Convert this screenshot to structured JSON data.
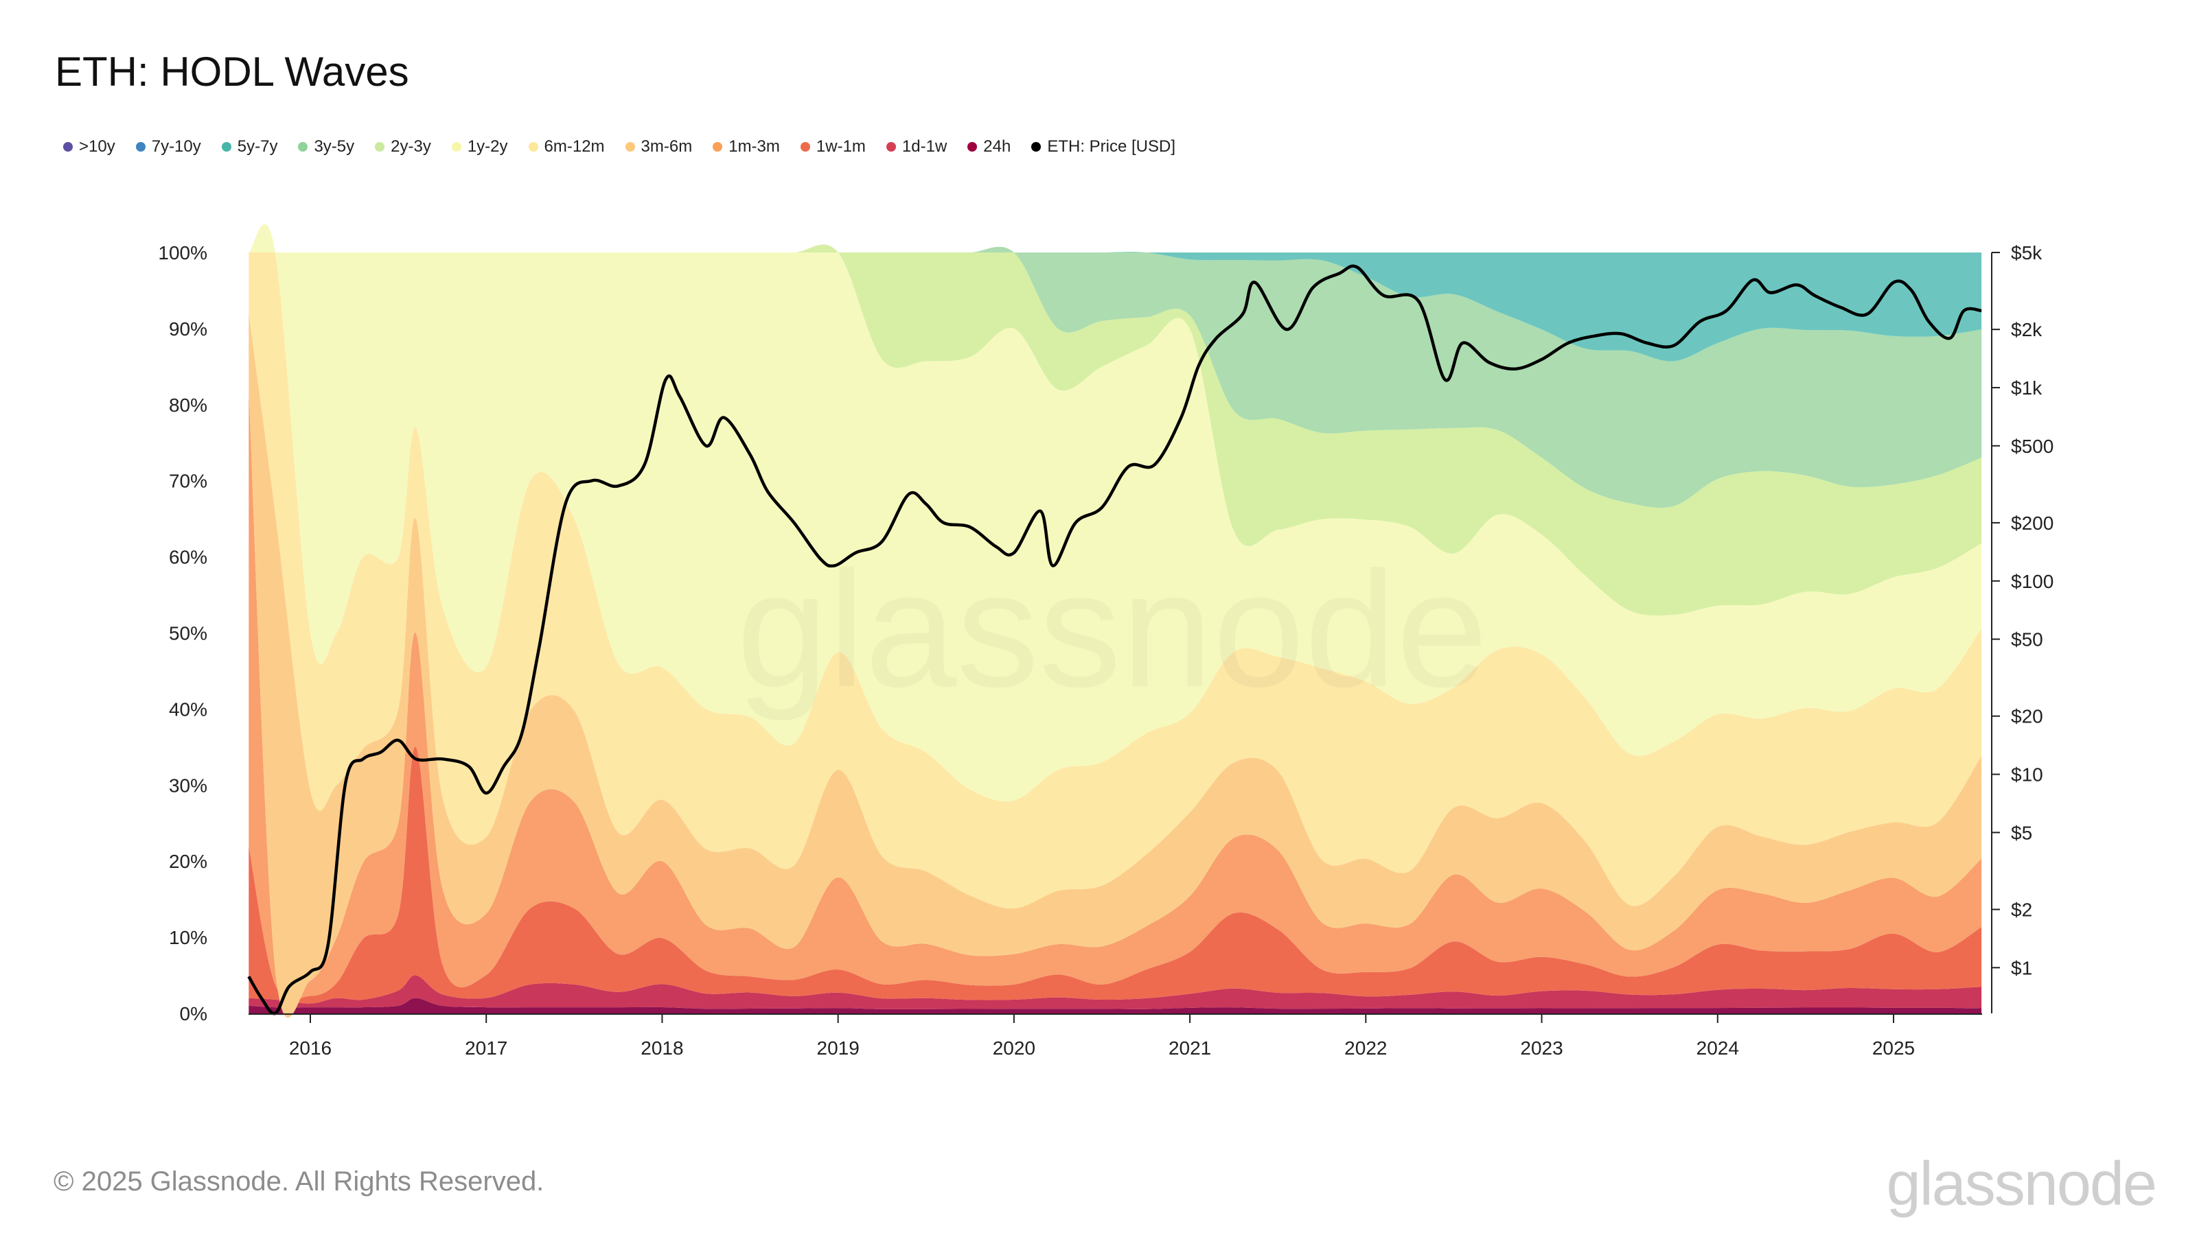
{
  "title": "ETH: HODL Waves",
  "footer": "© 2025 Glassnode. All Rights Reserved.",
  "brand": "glassnode",
  "watermark": "glassnode",
  "chart_data": {
    "type": "area",
    "stacked": true,
    "normalized": true,
    "xlabel": "",
    "ylabel": "",
    "x": [
      2015.65,
      2015.8,
      2016.0,
      2016.15,
      2016.3,
      2016.5,
      2016.6,
      2016.75,
      2017.0,
      2017.25,
      2017.5,
      2017.75,
      2018.0,
      2018.25,
      2018.5,
      2018.75,
      2019.0,
      2019.25,
      2019.5,
      2019.75,
      2020.0,
      2020.25,
      2020.5,
      2020.75,
      2021.0,
      2021.25,
      2021.5,
      2021.75,
      2022.0,
      2022.25,
      2022.5,
      2022.75,
      2023.0,
      2023.25,
      2023.5,
      2023.75,
      2024.0,
      2024.25,
      2024.5,
      2024.75,
      2025.0,
      2025.25,
      2025.5
    ],
    "x_ticks": [
      "2016",
      "2017",
      "2018",
      "2019",
      "2020",
      "2021",
      "2022",
      "2023",
      "2024",
      "2025"
    ],
    "y_ticks_left": [
      "0%",
      "10%",
      "20%",
      "30%",
      "40%",
      "50%",
      "60%",
      "70%",
      "80%",
      "90%",
      "100%"
    ],
    "y_ticks_right": [
      "$1",
      "$2",
      "$5",
      "$10",
      "$20",
      "$50",
      "$100",
      "$200",
      "$500",
      "$1k",
      "$2k",
      "$5k"
    ],
    "y_right_log_values": [
      1,
      2,
      5,
      10,
      20,
      50,
      100,
      200,
      500,
      1000,
      2000,
      5000
    ],
    "ylim_left": [
      0,
      100
    ],
    "ylim_right_log": [
      0.58,
      5000
    ],
    "series": [
      {
        "name": "24h",
        "color": "#8e1250",
        "values": [
          1.0,
          0.8,
          0.8,
          0.8,
          0.8,
          1.0,
          2.0,
          1.0,
          0.8,
          0.8,
          0.8,
          0.8,
          0.8,
          0.6,
          0.6,
          0.6,
          0.7,
          0.6,
          0.6,
          0.6,
          0.6,
          0.6,
          0.6,
          0.6,
          0.8,
          0.8,
          0.6,
          0.6,
          0.6,
          0.6,
          0.6,
          0.6,
          0.6,
          0.6,
          0.6,
          0.6,
          0.6,
          0.6,
          0.6,
          0.6,
          0.6,
          0.6,
          0.6
        ]
      },
      {
        "name": "1d-1w",
        "color": "#c9375a",
        "values": [
          1.0,
          1.0,
          0.5,
          1.2,
          1.0,
          2.0,
          3.0,
          1.5,
          1.2,
          3.0,
          3.0,
          2.0,
          3.0,
          2.0,
          2.0,
          1.5,
          2.0,
          1.5,
          1.5,
          1.2,
          1.2,
          1.5,
          1.2,
          1.5,
          2.0,
          2.5,
          2.0,
          2.0,
          1.5,
          1.5,
          2.0,
          1.5,
          2.0,
          2.0,
          1.5,
          1.5,
          2.0,
          2.0,
          1.8,
          2.0,
          2.0,
          2.0,
          2.5
        ]
      },
      {
        "name": "1w-1m",
        "color": "#ee6b50",
        "values": [
          20.0,
          2.0,
          1.0,
          2.0,
          8.0,
          10.0,
          30.0,
          4.0,
          3.0,
          10.0,
          10.0,
          5.0,
          6.0,
          3.0,
          2.0,
          2.0,
          3.0,
          2.0,
          2.5,
          2.0,
          2.0,
          3.0,
          2.0,
          4.0,
          6.0,
          10.0,
          8.0,
          3.0,
          3.0,
          3.0,
          6.0,
          4.0,
          4.0,
          3.0,
          2.0,
          3.0,
          5.0,
          4.0,
          4.0,
          4.0,
          6.0,
          4.0,
          7.0
        ]
      },
      {
        "name": "1m-3m",
        "color": "#f9a06e",
        "values": [
          60.0,
          2.0,
          2.0,
          6.0,
          10.0,
          12.0,
          15.0,
          10.0,
          8.0,
          14.0,
          14.0,
          8.0,
          10.0,
          6.0,
          6.0,
          4.0,
          12.0,
          6.0,
          5.0,
          4.0,
          4.0,
          4.0,
          5.0,
          6.0,
          8.0,
          10.0,
          10.0,
          6.0,
          6.0,
          5.0,
          8.0,
          7.0,
          8.0,
          6.0,
          3.0,
          4.0,
          6.0,
          6.0,
          5.0,
          6.0,
          6.0,
          6.0,
          8.0
        ]
      },
      {
        "name": "3m-6m",
        "color": "#fccd8a",
        "values": [
          10.0,
          60.0,
          25.0,
          20.0,
          15.0,
          15.0,
          15.0,
          12.0,
          10.0,
          12.0,
          12.0,
          8.0,
          8.0,
          10.0,
          10.0,
          10.0,
          14.0,
          12.0,
          10.0,
          8.0,
          6.0,
          7.0,
          8.0,
          10.0,
          12.0,
          10.0,
          10.0,
          8.0,
          8.0,
          6.0,
          8.0,
          10.0,
          10.0,
          8.0,
          5.0,
          6.0,
          7.0,
          6.0,
          6.0,
          6.0,
          6.0,
          8.0,
          12.0
        ]
      },
      {
        "name": "6m-12m",
        "color": "#fee8a6",
        "values": [
          8.0,
          34.2,
          20.7,
          20.0,
          25.2,
          20.0,
          12.0,
          25.0,
          22.2,
          30.2,
          25.2,
          22.2,
          17.2,
          18.4,
          16.4,
          14.9,
          15.3,
          17.9,
          16.4,
          14.2,
          14.2,
          15.9,
          16.2,
          16.9,
          14.2,
          14.7,
          14.4,
          24.4,
          21.9,
          18.9,
          14.4,
          19.9,
          17.4,
          16.4,
          16.9,
          14.9,
          12.4,
          12.4,
          14.1,
          12.4,
          14.4,
          14.4,
          14.9
        ]
      },
      {
        "name": "1y-2y",
        "color": "#f6f9be",
        "values": [
          0.0,
          0.0,
          50.0,
          50.0,
          40.0,
          40.0,
          23.0,
          46.5,
          54.0,
          30.0,
          35.0,
          54.0,
          54.0,
          60.0,
          58.0,
          60.0,
          52.0,
          52.0,
          54.0,
          58.0,
          62.0,
          50.0,
          52.0,
          54.0,
          55.0,
          16.0,
          16.0,
          19.0,
          20.0,
          20.0,
          16.0,
          16.0,
          14.0,
          14.0,
          16.0,
          14.0,
          12.0,
          12.0,
          12.0,
          12.0,
          12.0,
          13.0,
          10.0
        ]
      },
      {
        "name": "2y-3y",
        "color": "#d6efa4",
        "values": [
          0.0,
          0.0,
          0.0,
          0.0,
          0.0,
          0.0,
          0.0,
          0.0,
          0.0,
          0.0,
          0.0,
          0.0,
          0.0,
          0.0,
          0.0,
          0.0,
          0.0,
          15.0,
          15.0,
          14.0,
          10.0,
          8.0,
          6.0,
          4.0,
          2.0,
          16.0,
          14.0,
          11.0,
          11.0,
          11.0,
          15.0,
          10.0,
          9.0,
          10.0,
          12.0,
          12.0,
          14.0,
          14.0,
          12.0,
          11.0,
          10.0,
          10.0,
          10.0
        ]
      },
      {
        "name": "3y-5y",
        "color": "#acdcb0",
        "values": [
          0.0,
          0.0,
          0.0,
          0.0,
          0.0,
          0.0,
          0.0,
          0.0,
          0.0,
          0.0,
          0.0,
          0.0,
          0.0,
          0.0,
          0.0,
          0.0,
          0.0,
          0.0,
          0.0,
          0.0,
          0.0,
          10.0,
          9.0,
          9.0,
          8.0,
          20.0,
          20.0,
          22.0,
          19.0,
          15.0,
          16.0,
          14.0,
          15.0,
          16.0,
          17.0,
          16.0,
          15.0,
          15.0,
          15.0,
          16.0,
          16.0,
          15.0,
          15.0
        ]
      },
      {
        "name": "5y-7y",
        "color": "#6cc6bf",
        "values": [
          0.0,
          0.0,
          0.0,
          0.0,
          0.0,
          0.0,
          0.0,
          0.0,
          0.0,
          0.0,
          0.0,
          0.0,
          0.0,
          0.0,
          0.0,
          0.0,
          0.0,
          0.0,
          0.0,
          0.0,
          0.0,
          0.0,
          0.0,
          0.0,
          1.0,
          1.0,
          1.0,
          1.0,
          3.0,
          5.0,
          5.0,
          7.0,
          9.0,
          11.0,
          11.0,
          12.0,
          10.0,
          8.0,
          8.0,
          8.0,
          9.0,
          9.0,
          9.0
        ]
      },
      {
        "name": "7y-10y",
        "color": "#3f85bf",
        "values": [
          0.0,
          0.0,
          0.0,
          0.0,
          0.0,
          0.0,
          0.0,
          0.0,
          0.0,
          0.0,
          0.0,
          0.0,
          0.0,
          0.0,
          0.0,
          0.0,
          0.0,
          0.0,
          0.0,
          0.0,
          0.0,
          0.0,
          0.0,
          0.0,
          0.0,
          0.0,
          0.0,
          0.0,
          0.0,
          0.0,
          0.0,
          0.0,
          0.0,
          0.0,
          0.0,
          0.0,
          0.0,
          0.0,
          0.0,
          0.0,
          0.0,
          0.0,
          0.0
        ]
      },
      {
        "name": ">10y",
        "color": "#5e4fa2",
        "values": [
          0.0,
          0.0,
          0.0,
          0.0,
          0.0,
          0.0,
          0.0,
          0.0,
          0.0,
          0.0,
          0.0,
          0.0,
          0.0,
          0.0,
          0.0,
          0.0,
          0.0,
          0.0,
          0.0,
          0.0,
          0.0,
          0.0,
          0.0,
          0.0,
          0.0,
          0.0,
          0.0,
          0.0,
          0.0,
          0.0,
          0.0,
          0.0,
          0.0,
          0.0,
          0.0,
          0.0,
          0.0,
          0.0,
          0.0,
          0.0,
          0.0,
          0.0,
          0.0
        ]
      }
    ],
    "legend": [
      {
        "label": ">10y",
        "color": "#5e4fa2"
      },
      {
        "label": "7y-10y",
        "color": "#3f85bf"
      },
      {
        "label": "5y-7y",
        "color": "#47b5a7"
      },
      {
        "label": "3y-5y",
        "color": "#8fd39a"
      },
      {
        "label": "2y-3y",
        "color": "#cbe99f"
      },
      {
        "label": "1y-2y",
        "color": "#f6f6a8"
      },
      {
        "label": "6m-12m",
        "color": "#fde79b"
      },
      {
        "label": "3m-6m",
        "color": "#fcc97b"
      },
      {
        "label": "1m-3m",
        "color": "#f9a05a"
      },
      {
        "label": "1w-1m",
        "color": "#ee6a4a"
      },
      {
        "label": "1d-1w",
        "color": "#d53f54"
      },
      {
        "label": "24h",
        "color": "#9e0142"
      },
      {
        "label": "ETH: Price [USD]",
        "color": "#000000"
      }
    ],
    "price_series": {
      "name": "ETH: Price [USD]",
      "x": [
        2015.65,
        2015.72,
        2015.8,
        2015.88,
        2016.0,
        2016.1,
        2016.2,
        2016.3,
        2016.4,
        2016.5,
        2016.6,
        2016.75,
        2016.9,
        2017.0,
        2017.1,
        2017.2,
        2017.3,
        2017.45,
        2017.6,
        2017.75,
        2017.9,
        2018.02,
        2018.1,
        2018.25,
        2018.35,
        2018.5,
        2018.6,
        2018.75,
        2018.9,
        2018.98,
        2019.1,
        2019.25,
        2019.4,
        2019.5,
        2019.6,
        2019.75,
        2019.9,
        2020.0,
        2020.15,
        2020.22,
        2020.35,
        2020.5,
        2020.65,
        2020.8,
        2020.95,
        2021.05,
        2021.15,
        2021.3,
        2021.37,
        2021.55,
        2021.7,
        2021.85,
        2021.95,
        2022.1,
        2022.3,
        2022.45,
        2022.55,
        2022.7,
        2022.85,
        2023.0,
        2023.15,
        2023.3,
        2023.45,
        2023.6,
        2023.75,
        2023.9,
        2024.05,
        2024.2,
        2024.3,
        2024.45,
        2024.55,
        2024.7,
        2024.85,
        2025.0,
        2025.1,
        2025.2,
        2025.32,
        2025.4,
        2025.5
      ],
      "values": [
        0.9,
        0.7,
        0.58,
        0.8,
        0.95,
        1.3,
        9.0,
        12.0,
        13.0,
        15.0,
        12.0,
        12.0,
        11.0,
        8.0,
        11.0,
        16.0,
        45.0,
        250.0,
        330.0,
        310.0,
        400.0,
        1100.0,
        900.0,
        500.0,
        700.0,
        450.0,
        290.0,
        200.0,
        130.0,
        120.0,
        140.0,
        160.0,
        280.0,
        250.0,
        200.0,
        190.0,
        150.0,
        140.0,
        230.0,
        120.0,
        200.0,
        240.0,
        390.0,
        400.0,
        700.0,
        1300.0,
        1800.0,
        2400.0,
        3500.0,
        2000.0,
        3300.0,
        3900.0,
        4200.0,
        3000.0,
        2800.0,
        1100.0,
        1700.0,
        1350.0,
        1250.0,
        1400.0,
        1700.0,
        1850.0,
        1900.0,
        1700.0,
        1650.0,
        2200.0,
        2500.0,
        3600.0,
        3100.0,
        3400.0,
        3000.0,
        2600.0,
        2400.0,
        3500.0,
        3200.0,
        2200.0,
        1800.0,
        2500.0,
        2500.0
      ]
    }
  }
}
